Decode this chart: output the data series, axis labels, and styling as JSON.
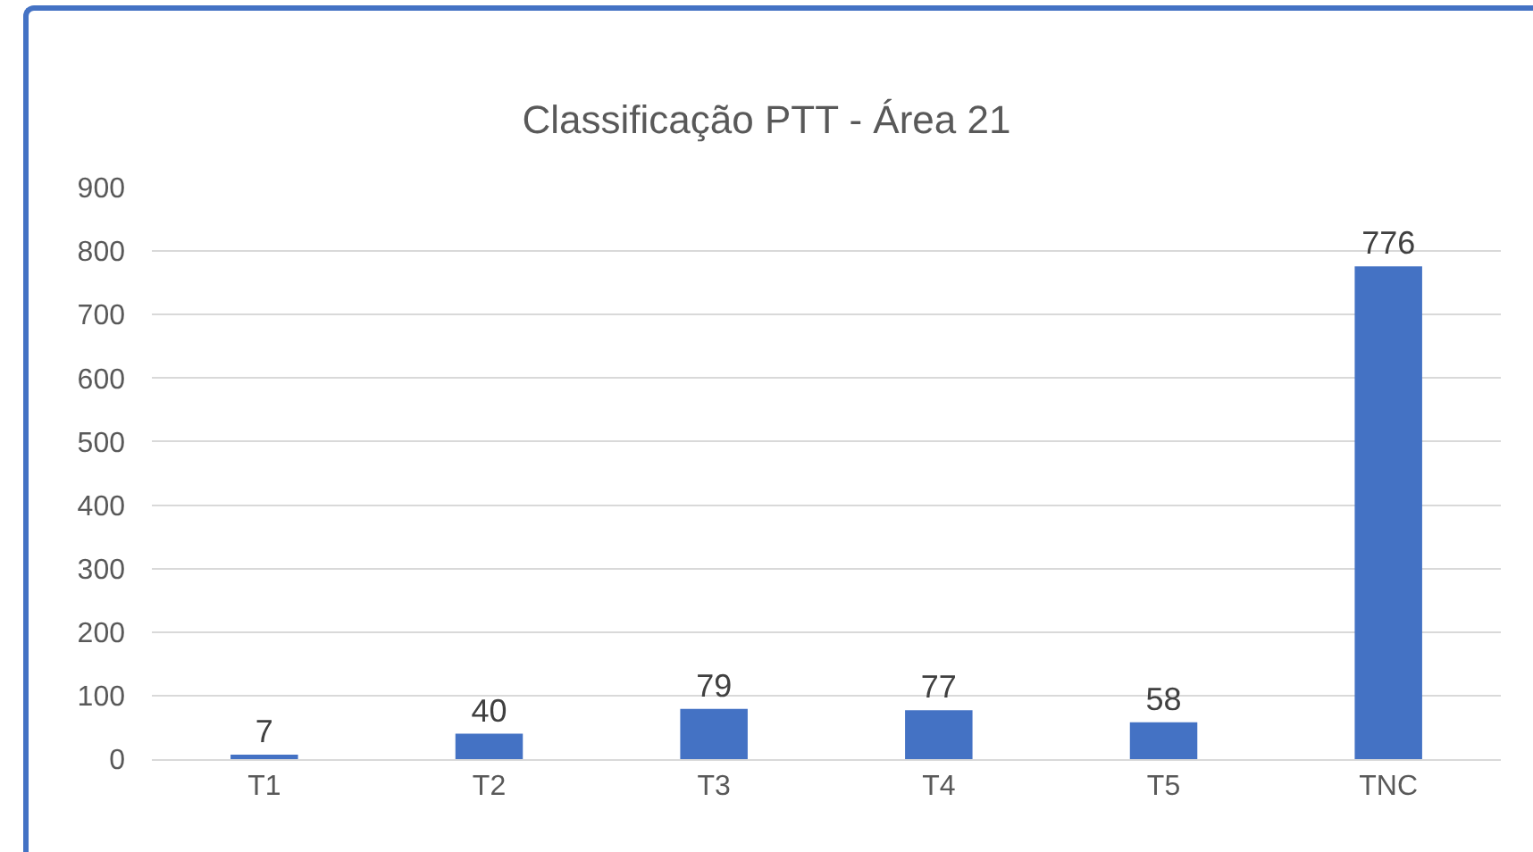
{
  "chart_data": {
    "type": "bar",
    "title": "Classificação PTT - Área 21",
    "categories": [
      "T1",
      "T2",
      "T3",
      "T4",
      "T5",
      "TNC"
    ],
    "values": [
      7,
      40,
      79,
      77,
      58,
      776
    ],
    "color": "#4472c4",
    "ylim": [
      0,
      900
    ],
    "yticks": [
      0,
      100,
      200,
      300,
      400,
      500,
      600,
      700,
      800,
      900
    ],
    "grid": "y",
    "data_labels": true,
    "legend": false
  }
}
